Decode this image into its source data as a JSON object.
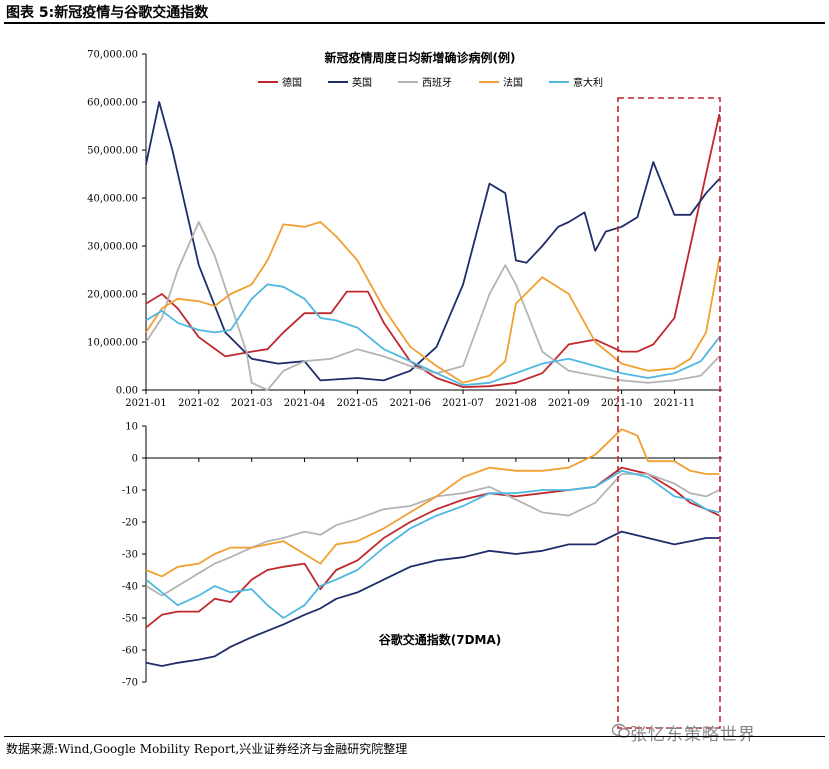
{
  "figure": {
    "title": "图表 5:新冠疫情与谷歌交通指数",
    "source": "数据来源:Wind,Google Mobility Report,兴业证券经济与金融研究院整理",
    "watermark": "张忆东策略世界"
  },
  "chart_data": [
    {
      "type": "line",
      "title": "新冠疫情周度日均新增确诊病例(例)",
      "x_labels": [
        "2021-01",
        "2021-02",
        "2021-03",
        "2021-04",
        "2021-05",
        "2021-06",
        "2021-07",
        "2021-08",
        "2021-09",
        "2021-10",
        "2021-11"
      ],
      "x_positions": [
        0,
        1,
        2,
        3,
        4,
        5,
        6,
        7,
        8,
        9,
        10
      ],
      "xlim": [
        0,
        10.9
      ],
      "ylim": [
        0,
        70000
      ],
      "y_ticks": [
        0,
        10000,
        20000,
        30000,
        40000,
        50000,
        60000,
        70000
      ],
      "y_tick_labels": [
        "0.00",
        "10,000.00",
        "20,000.00",
        "30,000.00",
        "40,000.00",
        "50,000.00",
        "60,000.00",
        "70,000.00"
      ],
      "legend_position": "top",
      "series": [
        {
          "name": "德国",
          "color": "#c0282d",
          "x": [
            0,
            0.3,
            0.6,
            1,
            1.5,
            2,
            2.3,
            2.6,
            3,
            3.5,
            3.8,
            4.2,
            4.5,
            5,
            5.5,
            6,
            6.5,
            7,
            7.5,
            8,
            8.5,
            9,
            9.3,
            9.6,
            10,
            10.3,
            10.6,
            10.85
          ],
          "y": [
            18000,
            20000,
            17000,
            11000,
            7000,
            8000,
            8500,
            12000,
            16000,
            16000,
            20500,
            20500,
            14000,
            6000,
            2500,
            600,
            800,
            1500,
            3500,
            9500,
            10500,
            8000,
            8000,
            9500,
            15000,
            30000,
            45000,
            57500
          ]
        },
        {
          "name": "英国",
          "color": "#1f2d6b",
          "x": [
            0,
            0.25,
            0.5,
            1,
            1.5,
            2,
            2.5,
            3,
            3.3,
            4,
            4.5,
            5,
            5.5,
            6,
            6.5,
            6.8,
            7,
            7.2,
            7.5,
            7.8,
            8,
            8.3,
            8.5,
            8.7,
            9,
            9.3,
            9.6,
            10,
            10.3,
            10.6,
            10.85
          ],
          "y": [
            47000,
            60000,
            50000,
            26000,
            12000,
            6500,
            5500,
            6000,
            2000,
            2500,
            2000,
            4000,
            9000,
            22000,
            43000,
            41000,
            27000,
            26500,
            30000,
            34000,
            35000,
            37000,
            29000,
            33000,
            34000,
            36000,
            47500,
            36500,
            36500,
            41000,
            44000
          ]
        },
        {
          "name": "西班牙",
          "color": "#b4b4b4",
          "x": [
            0,
            0.3,
            0.6,
            1,
            1.3,
            1.6,
            1.9,
            2,
            2.3,
            2.6,
            3,
            3.5,
            4,
            4.5,
            5,
            5.5,
            6,
            6.5,
            6.8,
            7,
            7.5,
            8,
            8.5,
            9,
            9.5,
            10,
            10.5,
            10.85
          ],
          "y": [
            10000,
            15000,
            25000,
            35000,
            28000,
            18000,
            8000,
            1500,
            0,
            4000,
            6000,
            6500,
            8500,
            7000,
            5000,
            3500,
            5000,
            20000,
            26000,
            22000,
            8000,
            4000,
            3000,
            2000,
            1500,
            2000,
            3000,
            7000
          ]
        },
        {
          "name": "法国",
          "color": "#f0a030",
          "x": [
            0,
            0.3,
            0.6,
            1,
            1.3,
            1.6,
            2,
            2.3,
            2.6,
            3,
            3.3,
            3.6,
            4,
            4.5,
            5,
            5.5,
            6,
            6.5,
            6.8,
            7,
            7.5,
            8,
            8.5,
            9,
            9.5,
            10,
            10.3,
            10.6,
            10.85
          ],
          "y": [
            12000,
            17000,
            19000,
            18500,
            17500,
            20000,
            22000,
            27000,
            34500,
            34000,
            35000,
            32000,
            27000,
            17000,
            9000,
            5000,
            1500,
            3000,
            6000,
            18000,
            23500,
            20000,
            10000,
            5500,
            4000,
            4500,
            6500,
            12000,
            27500
          ]
        },
        {
          "name": "意大利",
          "color": "#4fb8e0",
          "x": [
            0,
            0.3,
            0.6,
            1,
            1.3,
            1.6,
            2,
            2.3,
            2.6,
            3,
            3.3,
            3.6,
            4,
            4.5,
            5,
            5.5,
            6,
            6.5,
            7,
            7.5,
            8,
            8.5,
            9,
            9.5,
            10,
            10.5,
            10.85
          ],
          "y": [
            14500,
            16500,
            14000,
            12500,
            12000,
            12500,
            19000,
            22000,
            21500,
            19000,
            15000,
            14500,
            13000,
            8500,
            6000,
            3500,
            1000,
            1500,
            3500,
            5500,
            6500,
            5000,
            3500,
            2500,
            3500,
            6000,
            11000
          ]
        }
      ]
    },
    {
      "type": "line",
      "title": "谷歌交通指数(7DMA)",
      "x_positions": [
        0,
        1,
        2,
        3,
        4,
        5,
        6,
        7,
        8,
        9,
        10
      ],
      "xlim": [
        0,
        10.9
      ],
      "ylim": [
        -70,
        10
      ],
      "y_ticks": [
        -70,
        -60,
        -50,
        -40,
        -30,
        -20,
        -10,
        0,
        10
      ],
      "y_tick_labels": [
        "-70",
        "-60",
        "-50",
        "-40",
        "-30",
        "-20",
        "-10",
        "0",
        "10"
      ],
      "series": [
        {
          "name": "德国",
          "color": "#c0282d",
          "x": [
            0,
            0.3,
            0.6,
            1,
            1.3,
            1.6,
            2,
            2.3,
            2.6,
            3,
            3.3,
            3.6,
            4,
            4.5,
            5,
            5.5,
            6,
            6.5,
            7,
            7.5,
            8,
            8.5,
            9,
            9.5,
            10,
            10.3,
            10.6,
            10.85
          ],
          "y": [
            -53,
            -49,
            -48,
            -48,
            -44,
            -45,
            -38,
            -35,
            -34,
            -33,
            -41,
            -35,
            -32,
            -25,
            -20,
            -16,
            -13,
            -11,
            -12,
            -11,
            -10,
            -9,
            -3,
            -5,
            -10,
            -14,
            -16,
            -18
          ]
        },
        {
          "name": "英国",
          "color": "#1f2d6b",
          "x": [
            0,
            0.3,
            0.6,
            1,
            1.3,
            1.6,
            2,
            2.3,
            2.6,
            3,
            3.3,
            3.6,
            4,
            4.5,
            5,
            5.5,
            6,
            6.5,
            7,
            7.5,
            8,
            8.5,
            9,
            9.5,
            10,
            10.3,
            10.6,
            10.85
          ],
          "y": [
            -64,
            -65,
            -64,
            -63,
            -62,
            -59,
            -56,
            -54,
            -52,
            -49,
            -47,
            -44,
            -42,
            -38,
            -34,
            -32,
            -31,
            -29,
            -30,
            -29,
            -27,
            -27,
            -23,
            -25,
            -27,
            -26,
            -25,
            -25
          ]
        },
        {
          "name": "西班牙",
          "color": "#b4b4b4",
          "x": [
            0,
            0.3,
            0.6,
            1,
            1.3,
            1.6,
            2,
            2.3,
            2.6,
            3,
            3.3,
            3.6,
            4,
            4.5,
            5,
            5.5,
            6,
            6.5,
            7,
            7.5,
            8,
            8.5,
            9,
            9.5,
            10,
            10.3,
            10.6,
            10.85
          ],
          "y": [
            -40,
            -43,
            -40,
            -36,
            -33,
            -31,
            -28,
            -26,
            -25,
            -23,
            -24,
            -21,
            -19,
            -16,
            -15,
            -12,
            -11,
            -9,
            -13,
            -17,
            -18,
            -14,
            -5,
            -5,
            -8,
            -11,
            -12,
            -10
          ]
        },
        {
          "name": "法国",
          "color": "#f0a030",
          "x": [
            0,
            0.3,
            0.6,
            1,
            1.3,
            1.6,
            2,
            2.3,
            2.6,
            3,
            3.3,
            3.6,
            4,
            4.5,
            5,
            5.5,
            6,
            6.5,
            7,
            7.5,
            8,
            8.5,
            9,
            9.3,
            9.5,
            10,
            10.3,
            10.6,
            10.85
          ],
          "y": [
            -35,
            -37,
            -34,
            -33,
            -30,
            -28,
            -28,
            -27,
            -26,
            -30,
            -33,
            -27,
            -26,
            -22,
            -17,
            -12,
            -6,
            -3,
            -4,
            -4,
            -3,
            1,
            9,
            7,
            -1,
            -1,
            -4,
            -5,
            -5
          ]
        },
        {
          "name": "意大利",
          "color": "#4fb8e0",
          "x": [
            0,
            0.3,
            0.6,
            1,
            1.3,
            1.6,
            2,
            2.3,
            2.6,
            3,
            3.3,
            3.6,
            4,
            4.5,
            5,
            5.5,
            6,
            6.5,
            7,
            7.5,
            8,
            8.5,
            9,
            9.5,
            10,
            10.3,
            10.6,
            10.85
          ],
          "y": [
            -38,
            -42,
            -46,
            -43,
            -40,
            -42,
            -41,
            -46,
            -50,
            -46,
            -40,
            -38,
            -35,
            -28,
            -22,
            -18,
            -15,
            -11,
            -11,
            -10,
            -10,
            -9,
            -4,
            -6,
            -12,
            -13,
            -16,
            -17
          ]
        }
      ]
    }
  ]
}
